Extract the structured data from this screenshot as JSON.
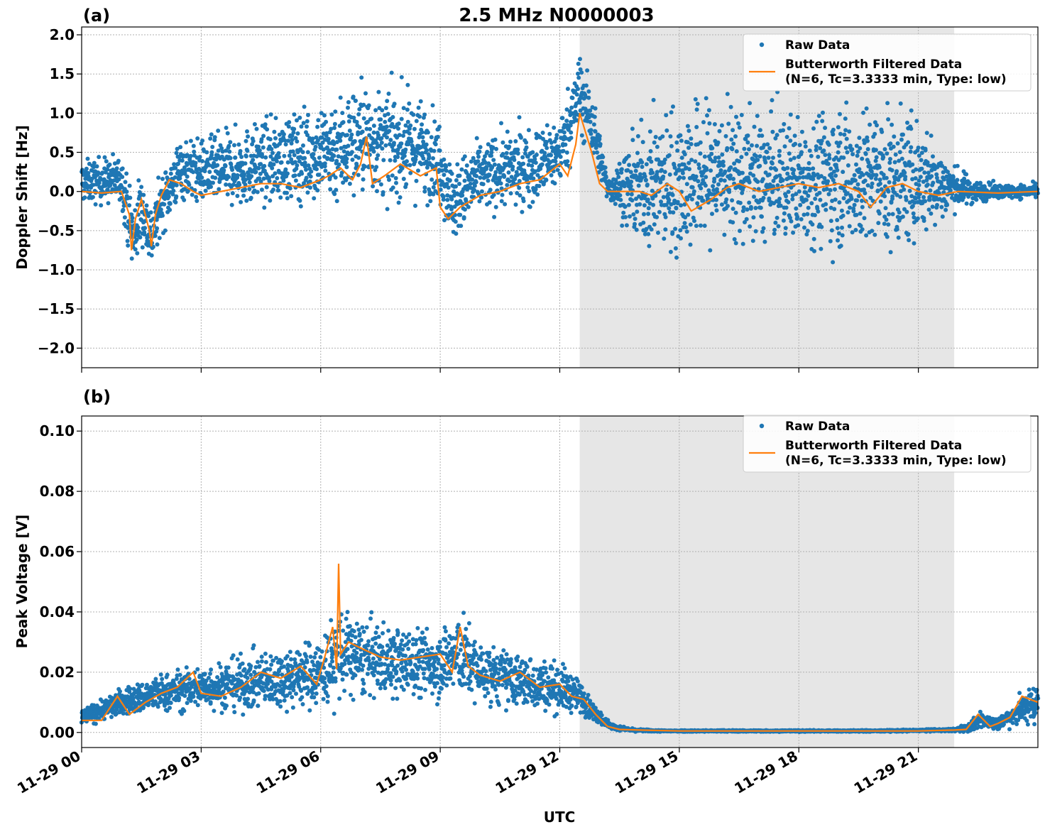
{
  "figure": {
    "title": "2.5 MHz N0000003",
    "xlabel": "UTC"
  },
  "colors": {
    "raw": "#1f77b4",
    "filtered": "#ff7f0e",
    "shade": "#e6e6e6",
    "grid": "#b0b0b0"
  },
  "chart_data": [
    {
      "type": "scatter",
      "panel_label": "(a)",
      "ylabel": "Doppler Shift [Hz]",
      "xlim": [
        0,
        24
      ],
      "ylim": [
        -2.25,
        2.1
      ],
      "x_unit": "hours UTC on 11-29",
      "shaded_region": [
        12.5,
        21.9
      ],
      "yticks": [
        2.0,
        1.5,
        1.0,
        0.5,
        0.0,
        -0.5,
        -1.0,
        -1.5,
        -2.0
      ],
      "ytick_labels": [
        "2.0",
        "1.5",
        "1.0",
        "0.5",
        "0.0",
        "−0.5",
        "−1.0",
        "−1.5",
        "−2.0"
      ],
      "xticks": [
        0,
        3,
        6,
        9,
        12,
        15,
        18,
        21
      ],
      "legend": {
        "placement": "top-right",
        "raw_label": "Raw Data",
        "filtered_label_1": "Butterworth Filtered Data",
        "filtered_label_2": "(N=6, Tc=3.3333 min, Type: low)"
      },
      "series": [
        {
          "name": "Butterworth Filtered Data",
          "kind": "line",
          "x": [
            0,
            0.5,
            1.0,
            1.2,
            1.25,
            1.35,
            1.5,
            1.7,
            1.75,
            1.85,
            2.0,
            2.2,
            2.5,
            2.8,
            3.0,
            3.5,
            4.0,
            4.5,
            5.0,
            5.5,
            6.0,
            6.2,
            6.5,
            6.8,
            7.0,
            7.15,
            7.3,
            7.6,
            8.0,
            8.5,
            8.9,
            9.0,
            9.2,
            9.5,
            10.0,
            10.5,
            11.0,
            11.5,
            12.0,
            12.2,
            12.4,
            12.5,
            12.8,
            13.0,
            13.2,
            13.5,
            14.0,
            14.3,
            14.7,
            15.0,
            15.3,
            15.8,
            16.2,
            16.5,
            17.0,
            17.5,
            18.0,
            18.5,
            19.0,
            19.5,
            19.8,
            20.2,
            20.6,
            21.0,
            21.5,
            22.0,
            23.0,
            24.0
          ],
          "y": [
            0.0,
            -0.02,
            0.0,
            -0.3,
            -0.75,
            -0.35,
            -0.1,
            -0.5,
            -0.7,
            -0.3,
            -0.05,
            0.15,
            0.1,
            0.0,
            -0.05,
            0.0,
            0.05,
            0.1,
            0.1,
            0.05,
            0.15,
            0.2,
            0.3,
            0.15,
            0.35,
            0.7,
            0.1,
            0.2,
            0.35,
            0.2,
            0.3,
            -0.2,
            -0.35,
            -0.2,
            -0.05,
            0.0,
            0.1,
            0.15,
            0.35,
            0.2,
            0.6,
            1.0,
            0.5,
            0.1,
            0.0,
            0.0,
            0.0,
            -0.05,
            0.1,
            0.0,
            -0.25,
            -0.1,
            0.05,
            0.1,
            0.0,
            0.05,
            0.1,
            0.05,
            0.1,
            0.0,
            -0.2,
            0.05,
            0.1,
            0.0,
            -0.05,
            0.0,
            -0.02,
            0.0
          ]
        },
        {
          "name": "Raw Data",
          "kind": "points",
          "envelope_x": [
            0,
            1.0,
            1.2,
            1.3,
            1.5,
            1.75,
            2.0,
            2.5,
            3.0,
            4.0,
            5.0,
            6.0,
            6.5,
            7.0,
            7.5,
            8.0,
            8.5,
            9.0,
            9.3,
            10.0,
            11.0,
            11.5,
            12.0,
            12.5,
            12.8,
            13.2,
            14.0,
            15.0,
            16.0,
            17.0,
            18.0,
            19.0,
            20.0,
            21.0,
            21.9,
            22.5,
            23.0,
            24.0
          ],
          "envelope_y": [
            0.12,
            0.15,
            -0.35,
            -0.6,
            -0.2,
            -0.6,
            -0.15,
            0.3,
            0.25,
            0.3,
            0.4,
            0.5,
            0.55,
            0.7,
            0.6,
            0.6,
            0.55,
            0.4,
            -0.15,
            0.2,
            0.3,
            0.35,
            0.5,
            1.25,
            0.9,
            0.05,
            0.05,
            0.15,
            0.25,
            0.15,
            0.15,
            0.2,
            0.15,
            0.15,
            0.05,
            0.0,
            0.0,
            0.0
          ],
          "envelope_spread": [
            0.3,
            0.35,
            0.5,
            0.6,
            0.5,
            0.45,
            0.4,
            0.45,
            0.45,
            0.55,
            0.6,
            0.7,
            0.8,
            0.8,
            0.75,
            0.75,
            0.7,
            0.6,
            0.55,
            0.5,
            0.55,
            0.55,
            0.5,
            0.6,
            0.5,
            0.15,
            0.8,
            1.1,
            1.0,
            0.9,
            0.9,
            1.0,
            1.0,
            0.9,
            0.3,
            0.15,
            0.1,
            0.1
          ],
          "n_points": 3600
        }
      ]
    },
    {
      "type": "scatter",
      "panel_label": "(b)",
      "ylabel": "Peak Voltage [V]",
      "xlim": [
        0,
        24
      ],
      "ylim": [
        -0.005,
        0.105
      ],
      "x_unit": "hours UTC on 11-29",
      "shaded_region": [
        12.5,
        21.9
      ],
      "yticks": [
        0.1,
        0.08,
        0.06,
        0.04,
        0.02,
        0.0
      ],
      "ytick_labels": [
        "0.10",
        "0.08",
        "0.06",
        "0.04",
        "0.02",
        "0.00"
      ],
      "xticks": [
        0,
        3,
        6,
        9,
        12,
        15,
        18,
        21
      ],
      "xtick_labels": [
        "11-29 00",
        "11-29 03",
        "11-29 06",
        "11-29 09",
        "11-29 12",
        "11-29 15",
        "11-29 18",
        "11-29 21"
      ],
      "legend": {
        "placement": "top-right",
        "raw_label": "Raw Data",
        "filtered_label_1": "Butterworth Filtered Data",
        "filtered_label_2": "(N=6, Tc=3.3333 min, Type: low)"
      },
      "series": [
        {
          "name": "Butterworth Filtered Data",
          "kind": "line",
          "x": [
            0,
            0.5,
            0.9,
            1.2,
            1.6,
            2.0,
            2.4,
            2.8,
            3.0,
            3.5,
            4.0,
            4.5,
            5.0,
            5.5,
            5.9,
            6.1,
            6.3,
            6.4,
            6.45,
            6.5,
            6.7,
            7.0,
            7.5,
            8.0,
            8.5,
            9.0,
            9.3,
            9.5,
            9.7,
            10.0,
            10.5,
            11.0,
            11.5,
            12.0,
            12.3,
            12.6,
            12.9,
            13.2,
            13.5,
            14.0,
            15.0,
            16.0,
            17.0,
            18.0,
            19.0,
            20.0,
            21.0,
            21.9,
            22.2,
            22.5,
            22.8,
            23.0,
            23.3,
            23.6,
            24.0
          ],
          "y": [
            0.004,
            0.004,
            0.012,
            0.006,
            0.01,
            0.013,
            0.015,
            0.02,
            0.013,
            0.012,
            0.015,
            0.02,
            0.018,
            0.022,
            0.016,
            0.025,
            0.035,
            0.021,
            0.056,
            0.026,
            0.03,
            0.028,
            0.025,
            0.024,
            0.025,
            0.026,
            0.02,
            0.035,
            0.022,
            0.019,
            0.017,
            0.02,
            0.015,
            0.016,
            0.012,
            0.011,
            0.006,
            0.002,
            0.001,
            0.0008,
            0.0005,
            0.0005,
            0.0005,
            0.0005,
            0.0005,
            0.0005,
            0.0005,
            0.0008,
            0.001,
            0.006,
            0.002,
            0.003,
            0.005,
            0.012,
            0.01
          ]
        },
        {
          "name": "Raw Data",
          "kind": "points",
          "envelope_x": [
            0,
            1.0,
            2.0,
            3.0,
            4.0,
            5.0,
            6.0,
            6.5,
            7.0,
            8.0,
            9.0,
            9.5,
            10.0,
            11.0,
            12.0,
            12.5,
            12.9,
            13.3,
            13.8,
            14.5,
            16.0,
            18.0,
            20.0,
            21.9,
            22.3,
            22.6,
            23.0,
            23.5,
            24.0
          ],
          "envelope_y": [
            0.005,
            0.01,
            0.013,
            0.015,
            0.016,
            0.018,
            0.02,
            0.026,
            0.025,
            0.023,
            0.023,
            0.026,
            0.02,
            0.017,
            0.015,
            0.012,
            0.006,
            0.002,
            0.0008,
            0.0005,
            0.0005,
            0.0005,
            0.0005,
            0.0008,
            0.002,
            0.004,
            0.003,
            0.007,
            0.01
          ],
          "envelope_spread": [
            0.003,
            0.005,
            0.007,
            0.008,
            0.01,
            0.011,
            0.013,
            0.018,
            0.014,
            0.013,
            0.013,
            0.016,
            0.011,
            0.01,
            0.009,
            0.006,
            0.003,
            0.001,
            0.0005,
            0.0003,
            0.0003,
            0.0003,
            0.0003,
            0.0005,
            0.002,
            0.003,
            0.002,
            0.005,
            0.008
          ],
          "n_points": 3600
        }
      ]
    }
  ]
}
